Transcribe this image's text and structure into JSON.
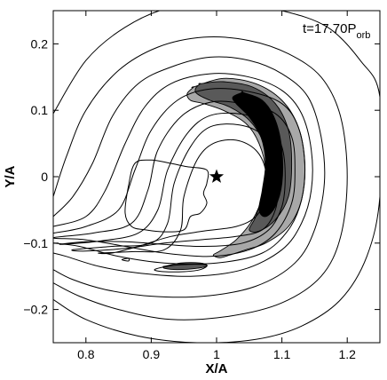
{
  "chart_data": {
    "type": "contour",
    "xlabel": "X/A",
    "ylabel": "Y/A",
    "xlim": [
      0.75,
      1.25
    ],
    "ylim": [
      -0.25,
      0.25
    ],
    "xticks": [
      0.8,
      0.9,
      1,
      1.1,
      1.2
    ],
    "xtick_labels": [
      "0.8",
      "0.9",
      "1",
      "1.1",
      "1.2"
    ],
    "yticks": [
      -0.2,
      -0.1,
      0,
      0.1,
      0.2
    ],
    "ytick_labels": [
      "−0.2",
      "−0.1",
      "0",
      "0.1",
      "0.2"
    ],
    "grid": false,
    "annotation": {
      "main": "t=17.70P",
      "sub": "orb"
    },
    "marker": {
      "symbol": "star",
      "x": 1.0,
      "y": 0.0
    },
    "fill_colors": {
      "outer": "#a8a8a8",
      "middle": "#595959",
      "inner": "#000000"
    },
    "contours": [
      [
        [
          0.75,
          0.095
        ],
        [
          0.8,
          0.175
        ],
        [
          0.86,
          0.225
        ],
        [
          0.93,
          0.255
        ],
        [
          1.02,
          0.262
        ],
        [
          1.1,
          0.25
        ],
        [
          1.17,
          0.225
        ],
        [
          1.22,
          0.175
        ],
        [
          1.25,
          0.12
        ],
        [
          1.25,
          -0.03
        ],
        [
          1.23,
          -0.12
        ],
        [
          1.19,
          -0.185
        ],
        [
          1.13,
          -0.225
        ],
        [
          1.06,
          -0.245
        ],
        [
          0.97,
          -0.25
        ],
        [
          0.88,
          -0.24
        ],
        [
          0.8,
          -0.215
        ],
        [
          0.75,
          -0.185
        ]
      ],
      [
        [
          0.75,
          -0.03
        ],
        [
          0.77,
          0.03
        ],
        [
          0.8,
          0.1
        ],
        [
          0.85,
          0.16
        ],
        [
          0.91,
          0.195
        ],
        [
          0.98,
          0.21
        ],
        [
          1.05,
          0.205
        ],
        [
          1.11,
          0.185
        ],
        [
          1.16,
          0.15
        ],
        [
          1.19,
          0.09
        ],
        [
          1.2,
          0.0
        ],
        [
          1.19,
          -0.09
        ],
        [
          1.16,
          -0.15
        ],
        [
          1.1,
          -0.19
        ],
        [
          1.02,
          -0.21
        ],
        [
          0.93,
          -0.215
        ],
        [
          0.85,
          -0.2
        ],
        [
          0.79,
          -0.18
        ],
        [
          0.75,
          -0.16
        ]
      ],
      [
        [
          0.75,
          -0.06
        ],
        [
          0.78,
          -0.03
        ],
        [
          0.81,
          0.02
        ],
        [
          0.84,
          0.09
        ],
        [
          0.88,
          0.14
        ],
        [
          0.93,
          0.165
        ],
        [
          0.99,
          0.18
        ],
        [
          1.05,
          0.175
        ],
        [
          1.1,
          0.155
        ],
        [
          1.14,
          0.12
        ],
        [
          1.16,
          0.06
        ],
        [
          1.165,
          -0.01
        ],
        [
          1.15,
          -0.08
        ],
        [
          1.12,
          -0.13
        ],
        [
          1.06,
          -0.165
        ],
        [
          0.98,
          -0.18
        ],
        [
          0.9,
          -0.18
        ],
        [
          0.83,
          -0.17
        ],
        [
          0.78,
          -0.155
        ],
        [
          0.75,
          -0.14
        ]
      ],
      [
        [
          0.75,
          -0.075
        ],
        [
          0.8,
          -0.06
        ],
        [
          0.83,
          -0.02
        ],
        [
          0.86,
          0.05
        ],
        [
          0.89,
          0.105
        ],
        [
          0.93,
          0.14
        ],
        [
          0.99,
          0.155
        ],
        [
          1.05,
          0.15
        ],
        [
          1.1,
          0.13
        ],
        [
          1.13,
          0.095
        ],
        [
          1.145,
          0.04
        ],
        [
          1.145,
          -0.02
        ],
        [
          1.13,
          -0.07
        ],
        [
          1.1,
          -0.11
        ],
        [
          1.04,
          -0.14
        ],
        [
          0.96,
          -0.15
        ],
        [
          0.88,
          -0.145
        ],
        [
          0.82,
          -0.135
        ],
        [
          0.77,
          -0.12
        ],
        [
          0.75,
          -0.115
        ]
      ],
      [
        [
          0.75,
          -0.085
        ],
        [
          0.8,
          -0.075
        ],
        [
          0.85,
          -0.05
        ],
        [
          0.875,
          0.01
        ],
        [
          0.9,
          0.07
        ],
        [
          0.94,
          0.115
        ],
        [
          0.99,
          0.132
        ],
        [
          1.05,
          0.128
        ],
        [
          1.1,
          0.11
        ],
        [
          1.125,
          0.075
        ],
        [
          1.135,
          0.02
        ],
        [
          1.13,
          -0.035
        ],
        [
          1.11,
          -0.08
        ],
        [
          1.07,
          -0.115
        ],
        [
          1.0,
          -0.13
        ],
        [
          0.92,
          -0.13
        ],
        [
          0.85,
          -0.12
        ],
        [
          0.79,
          -0.105
        ],
        [
          0.75,
          -0.1
        ]
      ],
      [
        [
          0.75,
          -0.092
        ],
        [
          0.81,
          -0.085
        ],
        [
          0.87,
          -0.07
        ],
        [
          0.895,
          -0.02
        ],
        [
          0.91,
          0.04
        ],
        [
          0.945,
          0.09
        ],
        [
          0.99,
          0.112
        ],
        [
          1.04,
          0.11
        ],
        [
          1.09,
          0.095
        ],
        [
          1.115,
          0.06
        ],
        [
          1.12,
          0.01
        ],
        [
          1.115,
          -0.04
        ],
        [
          1.09,
          -0.085
        ],
        [
          1.05,
          -0.11
        ],
        [
          0.99,
          -0.12
        ],
        [
          0.92,
          -0.115
        ],
        [
          0.86,
          -0.105
        ],
        [
          0.8,
          -0.095
        ],
        [
          0.75,
          -0.092
        ]
      ],
      [
        [
          0.76,
          -0.102
        ],
        [
          0.82,
          -0.097
        ],
        [
          0.88,
          -0.085
        ],
        [
          0.91,
          -0.05
        ],
        [
          0.925,
          0.01
        ],
        [
          0.955,
          0.065
        ],
        [
          0.99,
          0.092
        ],
        [
          1.04,
          0.094
        ],
        [
          1.08,
          0.078
        ],
        [
          1.1,
          0.045
        ],
        [
          1.105,
          0.0
        ],
        [
          1.1,
          -0.045
        ],
        [
          1.08,
          -0.08
        ],
        [
          1.04,
          -0.1
        ],
        [
          0.98,
          -0.105
        ],
        [
          0.92,
          -0.102
        ],
        [
          0.86,
          -0.098
        ],
        [
          0.8,
          -0.098
        ],
        [
          0.76,
          -0.102
        ]
      ],
      [
        [
          0.78,
          -0.11
        ],
        [
          0.84,
          -0.105
        ],
        [
          0.9,
          -0.1
        ],
        [
          0.925,
          -0.07
        ],
        [
          0.935,
          -0.01
        ],
        [
          0.96,
          0.045
        ],
        [
          0.99,
          0.075
        ],
        [
          1.035,
          0.078
        ],
        [
          1.07,
          0.063
        ],
        [
          1.09,
          0.03
        ],
        [
          1.095,
          -0.005
        ],
        [
          1.09,
          -0.05
        ],
        [
          1.07,
          -0.08
        ],
        [
          1.03,
          -0.09
        ],
        [
          0.975,
          -0.095
        ],
        [
          0.92,
          -0.1
        ],
        [
          0.86,
          -0.108
        ],
        [
          0.8,
          -0.112
        ],
        [
          0.78,
          -0.11
        ]
      ],
      [
        [
          0.82,
          -0.115
        ],
        [
          0.87,
          -0.113
        ],
        [
          0.92,
          -0.11
        ],
        [
          0.945,
          -0.08
        ],
        [
          0.95,
          -0.03
        ],
        [
          0.97,
          0.025
        ],
        [
          0.995,
          0.05
        ],
        [
          1.03,
          0.055
        ],
        [
          1.06,
          0.04
        ],
        [
          1.075,
          0.01
        ],
        [
          1.075,
          -0.03
        ],
        [
          1.06,
          -0.06
        ],
        [
          1.03,
          -0.075
        ],
        [
          0.98,
          -0.082
        ],
        [
          0.93,
          -0.09
        ],
        [
          0.88,
          -0.105
        ],
        [
          0.84,
          -0.115
        ],
        [
          0.82,
          -0.115
        ]
      ],
      [
        [
          0.86,
          -0.055
        ],
        [
          0.865,
          -0.015
        ],
        [
          0.875,
          0.02
        ],
        [
          0.9,
          0.025
        ],
        [
          0.93,
          0.02
        ],
        [
          0.955,
          0.015
        ],
        [
          0.985,
          0.01
        ],
        [
          0.985,
          -0.01
        ],
        [
          0.98,
          -0.025
        ],
        [
          0.985,
          -0.04
        ],
        [
          0.975,
          -0.055
        ],
        [
          0.96,
          -0.06
        ],
        [
          0.95,
          -0.08
        ],
        [
          0.92,
          -0.083
        ],
        [
          0.89,
          -0.08
        ],
        [
          0.87,
          -0.075
        ],
        [
          0.86,
          -0.055
        ]
      ],
      [
        [
          0.905,
          -0.14
        ],
        [
          0.93,
          -0.134
        ],
        [
          0.96,
          -0.132
        ],
        [
          0.985,
          -0.133
        ],
        [
          0.975,
          -0.14
        ],
        [
          0.95,
          -0.143
        ],
        [
          0.92,
          -0.143
        ],
        [
          0.905,
          -0.14
        ]
      ],
      [
        [
          0.855,
          -0.125
        ],
        [
          0.865,
          -0.123
        ],
        [
          0.865,
          -0.127
        ],
        [
          0.855,
          -0.125
        ]
      ]
    ],
    "filled_regions": [
      {
        "level": "outer",
        "path": [
          [
            0.965,
            0.135
          ],
          [
            1.01,
            0.148
          ],
          [
            1.06,
            0.14
          ],
          [
            1.1,
            0.115
          ],
          [
            1.125,
            0.075
          ],
          [
            1.135,
            0.02
          ],
          [
            1.13,
            -0.035
          ],
          [
            1.11,
            -0.075
          ],
          [
            1.075,
            -0.1
          ],
          [
            1.045,
            -0.11
          ],
          [
            1.02,
            -0.118
          ],
          [
            1.005,
            -0.122
          ],
          [
            0.995,
            -0.118
          ],
          [
            1.005,
            -0.112
          ],
          [
            1.03,
            -0.095
          ],
          [
            1.055,
            -0.065
          ],
          [
            1.07,
            -0.03
          ],
          [
            1.075,
            0.01
          ],
          [
            1.065,
            0.05
          ],
          [
            1.045,
            0.08
          ],
          [
            1.01,
            0.1
          ],
          [
            0.98,
            0.11
          ],
          [
            0.96,
            0.115
          ],
          [
            0.955,
            0.125
          ],
          [
            0.965,
            0.135
          ]
        ]
      },
      {
        "level": "middle",
        "path": [
          [
            0.975,
            0.14
          ],
          [
            1.01,
            0.143
          ],
          [
            1.055,
            0.135
          ],
          [
            1.09,
            0.11
          ],
          [
            1.11,
            0.07
          ],
          [
            1.115,
            0.02
          ],
          [
            1.11,
            -0.03
          ],
          [
            1.09,
            -0.065
          ],
          [
            1.065,
            -0.082
          ],
          [
            1.05,
            -0.08
          ],
          [
            1.06,
            -0.06
          ],
          [
            1.07,
            -0.025
          ],
          [
            1.075,
            0.02
          ],
          [
            1.07,
            0.055
          ],
          [
            1.05,
            0.085
          ],
          [
            1.02,
            0.105
          ],
          [
            0.99,
            0.115
          ],
          [
            0.97,
            0.125
          ],
          [
            0.968,
            0.133
          ],
          [
            0.975,
            0.14
          ]
        ]
      },
      {
        "level": "inner",
        "path": [
          [
            1.04,
            0.127
          ],
          [
            1.07,
            0.115
          ],
          [
            1.09,
            0.085
          ],
          [
            1.1,
            0.04
          ],
          [
            1.1,
            -0.01
          ],
          [
            1.09,
            -0.045
          ],
          [
            1.075,
            -0.06
          ],
          [
            1.065,
            -0.05
          ],
          [
            1.07,
            -0.02
          ],
          [
            1.075,
            0.02
          ],
          [
            1.068,
            0.06
          ],
          [
            1.05,
            0.09
          ],
          [
            1.03,
            0.11
          ],
          [
            1.025,
            0.12
          ],
          [
            1.04,
            0.127
          ]
        ]
      },
      {
        "level": "middle",
        "path": [
          [
            0.92,
            -0.135
          ],
          [
            0.945,
            -0.13
          ],
          [
            0.975,
            -0.13
          ],
          [
            0.985,
            -0.134
          ],
          [
            0.97,
            -0.138
          ],
          [
            0.94,
            -0.14
          ],
          [
            0.92,
            -0.138
          ],
          [
            0.92,
            -0.135
          ]
        ]
      }
    ]
  }
}
